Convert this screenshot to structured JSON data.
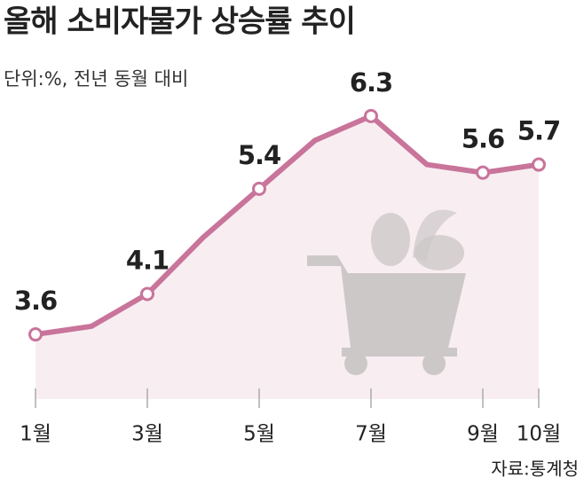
{
  "chart_data": {
    "type": "line",
    "title": "올해 소비자물가 상승률 추이",
    "subtitle": "단위:%, 전년 동월 대비",
    "source": "자료:통계청",
    "categories": [
      "1월",
      null,
      "3월",
      null,
      "5월",
      null,
      "7월",
      null,
      "9월",
      "10월"
    ],
    "values": [
      3.6,
      3.7,
      4.1,
      4.8,
      5.4,
      6.0,
      6.3,
      5.7,
      5.6,
      5.7
    ],
    "color": "#c9749a",
    "area_color": "#f8eef2",
    "ylim": [
      2.8,
      7.0
    ]
  }
}
